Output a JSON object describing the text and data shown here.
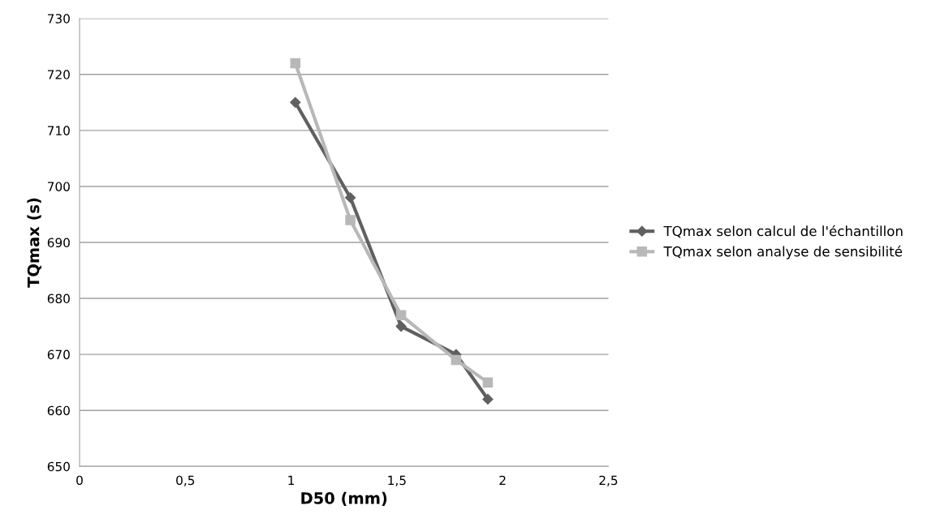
{
  "chart_data": {
    "type": "line",
    "xlabel": "D50 (mm)",
    "ylabel": "TQmax (s)",
    "series": [
      {
        "name": "TQmax selon calcul de l'échantillon",
        "color": "#606060",
        "marker": "diamond",
        "x": [
          1.02,
          1.28,
          1.52,
          1.78,
          1.93
        ],
        "values": [
          715,
          698,
          675,
          670,
          662
        ]
      },
      {
        "name": "TQmax selon analyse de sensibilité",
        "color": "#b8b8b8",
        "marker": "square",
        "x": [
          1.02,
          1.28,
          1.52,
          1.78,
          1.93
        ],
        "values": [
          722,
          694,
          677,
          669,
          665
        ]
      }
    ],
    "xlim": [
      0,
      2.5
    ],
    "xticks": [
      {
        "value": 0,
        "label": "0"
      },
      {
        "value": 0.5,
        "label": "0,5"
      },
      {
        "value": 1,
        "label": "1"
      },
      {
        "value": 1.5,
        "label": "1,5"
      },
      {
        "value": 2,
        "label": "2"
      },
      {
        "value": 2.5,
        "label": "2,5"
      }
    ],
    "ylim": [
      650,
      730
    ],
    "yticks": [
      650,
      660,
      670,
      680,
      690,
      700,
      710,
      720,
      730
    ],
    "grid": "y",
    "legend": "right",
    "line_style": "solid"
  }
}
